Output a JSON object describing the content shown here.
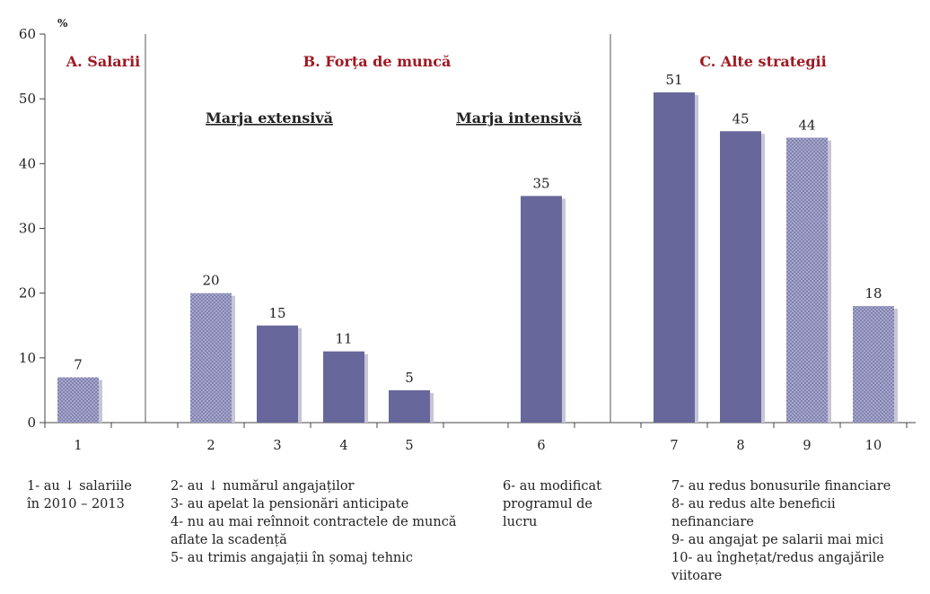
{
  "chart_data": {
    "type": "bar",
    "title": "",
    "ylabel": "%",
    "xlabel": "",
    "ylim": [
      0,
      60
    ],
    "yticks": [
      0,
      10,
      20,
      30,
      40,
      50,
      60
    ],
    "grid": false,
    "categories": [
      "1",
      "2",
      "3",
      "4",
      "5",
      "6",
      "7",
      "8",
      "9",
      "10"
    ],
    "values": [
      7,
      20,
      15,
      11,
      5,
      35,
      51,
      45,
      44,
      18
    ],
    "bar_styles": [
      "hatched",
      "hatched",
      "solid",
      "solid",
      "solid",
      "solid",
      "solid",
      "solid",
      "hatched",
      "hatched"
    ],
    "colors": {
      "bar": "#67679b",
      "bar_hatch_light": "#a9a9cc",
      "bar_shadow": "#c6c6d6",
      "section_title": "#a01822",
      "axis": "#444444"
    },
    "sections": [
      {
        "label": "A. Salarii",
        "categories": [
          "1"
        ]
      },
      {
        "label": "B. Forța de muncă",
        "categories": [
          "2",
          "3",
          "4",
          "5",
          "6"
        ]
      },
      {
        "label": "C. Alte strategii",
        "categories": [
          "7",
          "8",
          "9",
          "10"
        ]
      }
    ],
    "subsections": [
      {
        "label": "Marja extensivă",
        "categories": [
          "2",
          "3",
          "4",
          "5"
        ]
      },
      {
        "label": "Marja intensivă",
        "categories": [
          "6"
        ]
      }
    ]
  },
  "legend": {
    "col_a": [
      "1- au ↓ salariile",
      "în 2010 – 2013"
    ],
    "col_b": [
      "2- au ↓ numărul angajaților",
      "3- au apelat la pensionări anticipate",
      "4- nu au mai reînnoit contractele de muncă",
      "aflate la scadență",
      "5- au trimis angajații în șomaj tehnic"
    ],
    "col_c": [
      "6- au modificat",
      "programul de",
      "lucru"
    ],
    "col_d": [
      "7- au redus bonusurile financiare",
      "8- au redus alte beneficii",
      "nefinanciare",
      "9- au angajat pe salarii mai mici",
      "10- au înghețat/redus angajările",
      "viitoare"
    ]
  }
}
